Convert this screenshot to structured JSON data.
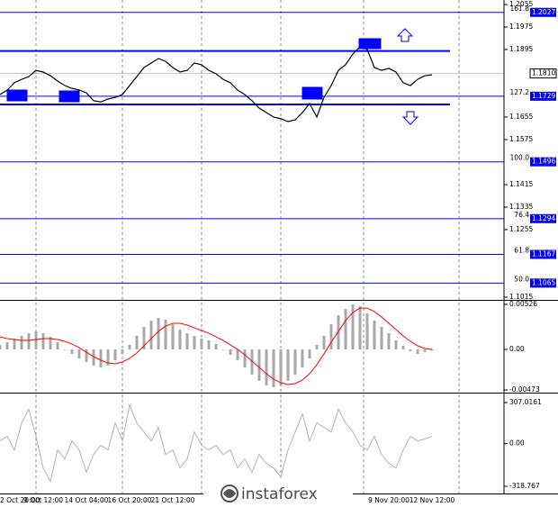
{
  "chart_data": [
    {
      "type": "line",
      "color": "#000000",
      "categories": [
        "2 Oct 20:00",
        null,
        null,
        null,
        null,
        null,
        "9 Oct 12:00",
        null,
        null,
        null,
        null,
        null,
        "14 Oct 04:00",
        null,
        null,
        null,
        null,
        null,
        "16 Oct 20:00",
        null,
        null,
        null,
        null,
        null,
        "21 Oct 12:00",
        null,
        null,
        null,
        null,
        null,
        null,
        null,
        null,
        null,
        null,
        null,
        null,
        null,
        null,
        null,
        null,
        null,
        null,
        null,
        null,
        null,
        null,
        null,
        null,
        null,
        null,
        null,
        null,
        null,
        "9 Nov 20:00",
        null,
        null,
        null,
        null,
        null,
        "12 Nov 12:00"
      ],
      "values": [
        1.1735,
        1.1751,
        1.1777,
        1.1789,
        1.1799,
        1.1821,
        1.1815,
        1.1802,
        1.1783,
        1.1767,
        1.1757,
        1.1751,
        1.1741,
        1.1713,
        1.1709,
        1.1719,
        1.1725,
        1.1735,
        1.1767,
        1.1799,
        1.1831,
        1.1847,
        1.1863,
        1.1853,
        1.1831,
        1.1815,
        1.1821,
        1.1847,
        1.1841,
        1.1821,
        1.1809,
        1.1789,
        1.1777,
        1.1751,
        1.1735,
        1.1713,
        1.1687,
        1.1671,
        1.1655,
        1.1649,
        1.1639,
        1.1645,
        1.1671,
        1.1703,
        1.1655,
        1.1725,
        1.1767,
        1.1821,
        1.1841,
        1.1879,
        1.1905,
        1.1895,
        1.1831,
        1.1821,
        1.1828,
        1.1815,
        1.1777,
        1.1767,
        1.1789,
        1.1802,
        1.1805
      ],
      "ylim": [
        1.1015,
        1.2055
      ],
      "yticks": [
        1.2055,
        1.1975,
        1.1895,
        1.1655,
        1.1575,
        1.1415,
        1.1335,
        1.1255,
        1.1015
      ],
      "current_price": {
        "value": 1.181,
        "label": "1.1810"
      },
      "level_color": "#0000ff",
      "fib_levels": [
        {
          "level": "161.8",
          "price": 1.2027
        },
        {
          "level": "127.2",
          "price": 1.1729
        },
        {
          "level": "100.0",
          "price": 1.1496
        },
        {
          "level": "76.4",
          "price": 1.1294
        },
        {
          "level": "61.8",
          "price": 1.1167
        },
        {
          "level": "50.0",
          "price": 1.1065
        }
      ],
      "channel": [
        1.189,
        1.17
      ]
    },
    {
      "type": "macd",
      "series": [
        {
          "style": "bar",
          "color": "#a9a9a9",
          "values": [
            0.00053,
            0.00084,
            0.00126,
            0.00158,
            0.00189,
            0.0021,
            0.00189,
            0.00147,
            0.00084,
            0,
            -0.00053,
            -0.00105,
            -0.00147,
            -0.00189,
            -0.0021,
            -0.00189,
            -0.00126,
            -0.00053,
            0.00053,
            0.00158,
            0.00263,
            0.00336,
            0.00368,
            0.00347,
            0.00294,
            0.00231,
            0.00189,
            0.00158,
            0.00126,
            0.00105,
            0.00063,
            0,
            -0.00063,
            -0.00126,
            -0.0021,
            -0.00294,
            -0.00368,
            -0.0042,
            -0.00441,
            -0.0042,
            -0.00368,
            -0.00294,
            -0.0021,
            -0.00105,
            0.00053,
            0.00158,
            0.00294,
            0.00399,
            0.00473,
            0.00525,
            0.00504,
            0.0042,
            0.00336,
            0.00263,
            0.00189,
            0.00105,
            0.00042,
            -0.00021,
            -0.00053,
            -0.00032,
            -0.00011
          ]
        },
        {
          "style": "line",
          "color": "#ff0000",
          "values": [
            0.00147,
            0.00126,
            0.00116,
            0.00105,
            0.00105,
            0.00116,
            0.00126,
            0.00126,
            0.00116,
            0.00095,
            0.00063,
            0.00021,
            -0.00032,
            -0.00084,
            -0.00126,
            -0.00158,
            -0.00168,
            -0.00147,
            -0.00105,
            -0.00042,
            0.00042,
            0.00126,
            0.0021,
            0.00273,
            0.00305,
            0.00305,
            0.00284,
            0.00252,
            0.00221,
            0.00189,
            0.00147,
            0.00105,
            0.00053,
            0,
            -0.00063,
            -0.00137,
            -0.0021,
            -0.00284,
            -0.00347,
            -0.00389,
            -0.0041,
            -0.00399,
            -0.00357,
            -0.00284,
            -0.00179,
            -0.00053,
            0.00084,
            0.0021,
            0.00336,
            0.00431,
            0.00483,
            0.00483,
            0.00441,
            0.00378,
            0.00305,
            0.00231,
            0.00158,
            0.00095,
            0.00042,
            0.00011,
            0
          ]
        }
      ],
      "ylim": [
        -0.00473,
        0.00526
      ],
      "yticks": [
        0.00526,
        {
          "value": 0,
          "label": "0.00"
        },
        -0.00473
      ]
    },
    {
      "type": "line",
      "color": "#b4b4b4",
      "values": [
        20,
        54,
        -47,
        155,
        256,
        54,
        -182,
        -283,
        -47,
        -114,
        20,
        -47,
        -215,
        -81,
        -13,
        -47,
        155,
        20,
        289,
        155,
        87,
        20,
        121,
        -81,
        -47,
        -182,
        -114,
        87,
        -13,
        -47,
        -13,
        -81,
        -47,
        -182,
        -114,
        -215,
        -81,
        -148,
        -182,
        -249,
        -47,
        87,
        222,
        20,
        155,
        121,
        87,
        256,
        155,
        87,
        -13,
        -47,
        54,
        -81,
        -148,
        -182,
        -47,
        54,
        20,
        34,
        54
      ],
      "ylim": [
        -318.767,
        307.0161
      ],
      "yticks": [
        307.0161,
        {
          "value": 0,
          "label": "0.00"
        },
        -318.767
      ]
    }
  ],
  "watermark": "instaforex"
}
